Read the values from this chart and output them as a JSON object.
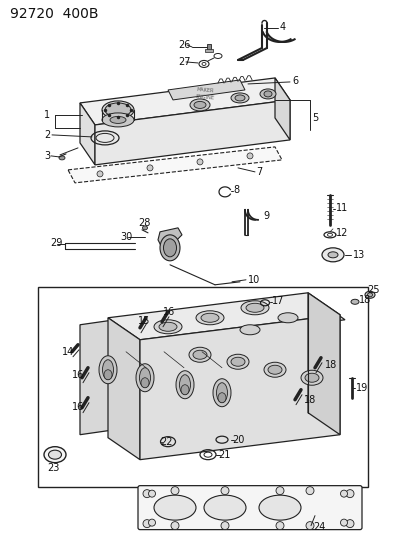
{
  "title": "92720  400B",
  "bg_color": "#ffffff",
  "line_color": "#222222",
  "text_color": "#111111",
  "title_fontsize": 10,
  "label_fontsize": 7,
  "fig_width": 4.14,
  "fig_height": 5.33,
  "dpi": 100
}
